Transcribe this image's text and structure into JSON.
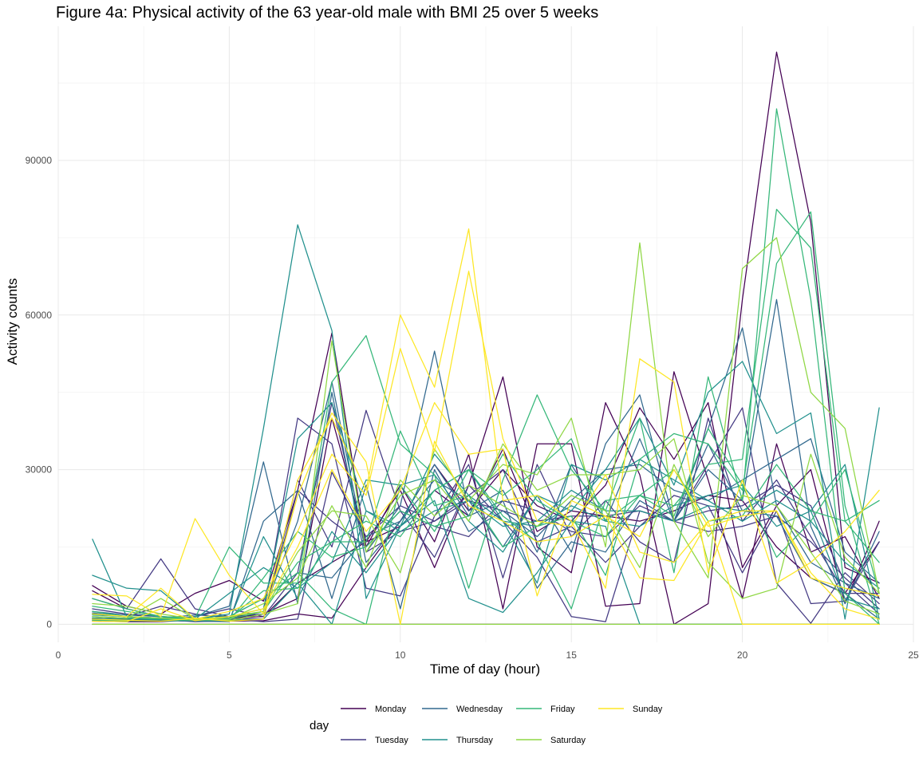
{
  "chart_data": {
    "type": "line",
    "title": "Figure 4a: Physical activity of the 63 year-old male with BMI 25 over 5 weeks",
    "xlabel": "Time of day (hour)",
    "ylabel": "Activity counts",
    "xlim": [
      0,
      25
    ],
    "ylim": [
      -3500,
      116000
    ],
    "xticks": [
      0,
      5,
      10,
      15,
      20,
      25
    ],
    "yticks": [
      0,
      30000,
      60000,
      90000
    ],
    "ytick_labels": [
      "0",
      "30000",
      "60000",
      "90000"
    ],
    "grid": true,
    "legend": {
      "title": "day",
      "position": "bottom",
      "entries": [
        {
          "name": "Monday",
          "color": "#440154"
        },
        {
          "name": "Tuesday",
          "color": "#443a83"
        },
        {
          "name": "Wednesday",
          "color": "#31688e"
        },
        {
          "name": "Thursday",
          "color": "#21908d"
        },
        {
          "name": "Friday",
          "color": "#35b779"
        },
        {
          "name": "Saturday",
          "color": "#8fd744"
        },
        {
          "name": "Sunday",
          "color": "#fde725"
        }
      ]
    },
    "x": [
      1,
      2,
      3,
      4,
      5,
      6,
      7,
      8,
      9,
      10,
      11,
      12,
      13,
      14,
      15,
      16,
      17,
      18,
      19,
      20,
      21,
      22,
      23,
      24
    ],
    "series": [
      {
        "name": "Monday",
        "values": [
          7500,
          3500,
          2000,
          6000,
          8500,
          4500,
          26000,
          56500,
          15000,
          27000,
          16000,
          33000,
          3000,
          35000,
          35000,
          3500,
          4000,
          49000,
          28000,
          5000,
          35000,
          14000,
          17000,
          5000
        ]
      },
      {
        "name": "Monday",
        "values": [
          6500,
          3000,
          1500,
          1000,
          1200,
          2000,
          5000,
          40000,
          16000,
          26000,
          11000,
          27000,
          48000,
          15000,
          10000,
          43000,
          29000,
          0,
          4000,
          63000,
          111000,
          78000,
          11000,
          8000
        ]
      },
      {
        "name": "Monday",
        "values": [
          1200,
          1000,
          800,
          600,
          600,
          700,
          2000,
          1200,
          11000,
          20000,
          31000,
          22000,
          30000,
          23000,
          20000,
          27000,
          42000,
          32000,
          43000,
          11000,
          23000,
          30000,
          4000,
          20000
        ]
      },
      {
        "name": "Monday",
        "values": [
          0,
          0,
          0,
          0,
          0,
          0,
          0,
          0,
          0,
          0,
          0,
          0,
          0,
          0,
          0,
          0,
          0,
          0,
          0,
          0,
          0,
          0,
          0,
          0
        ]
      },
      {
        "name": "Monday",
        "values": [
          600,
          500,
          500,
          900,
          1200,
          1500,
          8000,
          12000,
          16000,
          19000,
          26000,
          21000,
          34000,
          18000,
          22000,
          21000,
          20000,
          22000,
          25000,
          24000,
          15000,
          9000,
          6000,
          16000
        ]
      },
      {
        "name": "Tuesday",
        "values": [
          5000,
          3000,
          12700,
          3000,
          1500,
          2000,
          40000,
          35000,
          7000,
          5500,
          21000,
          31000,
          9000,
          31000,
          17000,
          24000,
          16000,
          12000,
          40000,
          20000,
          28000,
          17000,
          6000,
          6000
        ]
      },
      {
        "name": "Tuesday",
        "values": [
          2000,
          1500,
          3500,
          2000,
          1200,
          1000,
          28000,
          15000,
          41500,
          22000,
          13000,
          27000,
          20000,
          13000,
          1500,
          500,
          22000,
          20000,
          31000,
          42000,
          8000,
          200,
          10000,
          4000
        ]
      },
      {
        "name": "Tuesday",
        "values": [
          1000,
          800,
          700,
          1500,
          3000,
          1500,
          10000,
          43000,
          14000,
          18000,
          20000,
          25000,
          30000,
          16000,
          19000,
          12000,
          19000,
          25000,
          23000,
          10000,
          22000,
          4000,
          4500,
          16000
        ]
      },
      {
        "name": "Tuesday",
        "values": [
          3000,
          2000,
          1500,
          1200,
          1000,
          500,
          1000,
          29500,
          17000,
          23000,
          20000,
          24000,
          22000,
          20000,
          21000,
          21000,
          22000,
          20000,
          18000,
          19000,
          21000,
          16000,
          9000,
          3000
        ]
      },
      {
        "name": "Tuesday",
        "values": [
          800,
          600,
          900,
          500,
          700,
          1000,
          26000,
          20000,
          15000,
          22000,
          19000,
          17000,
          24000,
          22000,
          18000,
          17000,
          23000,
          20000,
          22000,
          23000,
          27000,
          23000,
          8000,
          2000
        ]
      },
      {
        "name": "Wednesday",
        "values": [
          2500,
          1800,
          1500,
          1200,
          1000,
          2500,
          20000,
          47000,
          14000,
          23000,
          53000,
          22000,
          26000,
          14000,
          31000,
          20000,
          36000,
          20000,
          38000,
          57500,
          23000,
          12000,
          8000,
          5000
        ]
      },
      {
        "name": "Wednesday",
        "values": [
          1500,
          1200,
          1000,
          1500,
          3500,
          31500,
          4000,
          45000,
          12000,
          20000,
          28000,
          24000,
          15000,
          25000,
          14000,
          35000,
          44500,
          20000,
          30000,
          24000,
          63000,
          19000,
          4000,
          18000
        ]
      },
      {
        "name": "Wednesday",
        "values": [
          1000,
          800,
          700,
          600,
          500,
          20000,
          26000,
          5000,
          27000,
          3000,
          30000,
          18000,
          22000,
          17000,
          24000,
          30000,
          31000,
          26000,
          24000,
          28000,
          32000,
          36000,
          14000,
          8000
        ]
      },
      {
        "name": "Wednesday",
        "values": [
          2200,
          1500,
          1200,
          1800,
          1500,
          5000,
          10000,
          9000,
          17000,
          20000,
          31000,
          21000,
          24000,
          7000,
          16000,
          14000,
          24000,
          20000,
          35000,
          22000,
          21000,
          9000,
          6000,
          1000
        ]
      },
      {
        "name": "Thursday",
        "values": [
          16500,
          1500,
          1200,
          1000,
          2000,
          38000,
          77500,
          57000,
          5000,
          19000,
          24000,
          5000,
          2300,
          10000,
          20000,
          19000,
          0,
          0,
          0,
          0,
          0,
          0,
          0,
          0
        ]
      },
      {
        "name": "Thursday",
        "values": [
          9500,
          7000,
          6500,
          1000,
          6000,
          11000,
          7000,
          12000,
          28000,
          27000,
          29000,
          20000,
          14000,
          25000,
          22000,
          30000,
          40000,
          27000,
          45000,
          51000,
          37000,
          41000,
          1000,
          42000
        ]
      },
      {
        "name": "Thursday",
        "values": [
          1800,
          1500,
          1200,
          1000,
          1500,
          3000,
          36000,
          43000,
          22000,
          19000,
          26000,
          30000,
          20000,
          19000,
          23000,
          20000,
          19000,
          23000,
          25000,
          27000,
          19000,
          22000,
          31000,
          1000
        ]
      },
      {
        "name": "Thursday",
        "values": [
          1200,
          1000,
          900,
          700,
          800,
          1000,
          8000,
          0,
          22000,
          18000,
          22000,
          24000,
          19000,
          20000,
          26000,
          22000,
          22000,
          20000,
          23000,
          22000,
          26000,
          22000,
          5000,
          3000
        ]
      },
      {
        "name": "Thursday",
        "values": [
          2000,
          1500,
          1000,
          800,
          700,
          17000,
          5000,
          18000,
          10000,
          19000,
          33000,
          25000,
          20000,
          8000,
          31000,
          28000,
          32000,
          28000,
          24000,
          20000,
          24000,
          20000,
          12000,
          7000
        ]
      },
      {
        "name": "Friday",
        "values": [
          3500,
          2500,
          1500,
          1200,
          15000,
          8000,
          8000,
          47000,
          56000,
          35000,
          29000,
          7000,
          28000,
          44500,
          30000,
          22000,
          40000,
          10000,
          48000,
          24000,
          100000,
          63000,
          6000,
          0
        ]
      },
      {
        "name": "Friday",
        "values": [
          2500,
          1500,
          1200,
          1000,
          1500,
          5000,
          10000,
          3000,
          0,
          27000,
          18000,
          30000,
          21000,
          16000,
          3000,
          24000,
          25000,
          23000,
          31000,
          32000,
          80500,
          73000,
          20000,
          12000
        ]
      },
      {
        "name": "Friday",
        "values": [
          1500,
          1200,
          1000,
          800,
          1000,
          2500,
          12000,
          16000,
          16000,
          37500,
          23000,
          25000,
          15000,
          19000,
          21000,
          9500,
          32000,
          37000,
          35000,
          26000,
          70000,
          80000,
          23000,
          0
        ]
      },
      {
        "name": "Friday",
        "values": [
          800,
          700,
          600,
          900,
          700,
          9000,
          18000,
          13000,
          15000,
          22000,
          19000,
          21000,
          33000,
          24000,
          20000,
          17000,
          25000,
          21000,
          38000,
          27000,
          13000,
          20000,
          30000,
          6000
        ]
      },
      {
        "name": "Friday",
        "values": [
          5000,
          3000,
          1500,
          1000,
          1200,
          6500,
          7000,
          16000,
          20000,
          17000,
          26000,
          30000,
          25000,
          30000,
          36000,
          20000,
          25000,
          30000,
          20000,
          21000,
          31000,
          22000,
          20000,
          24000
        ]
      },
      {
        "name": "Saturday",
        "values": [
          0,
          0,
          0,
          0,
          0,
          0,
          0,
          0,
          0,
          0,
          0,
          0,
          0,
          0,
          0,
          0,
          0,
          0,
          0,
          0,
          0,
          0,
          0,
          0
        ]
      },
      {
        "name": "Saturday",
        "values": [
          4000,
          3500,
          2000,
          1000,
          1500,
          2500,
          14000,
          22000,
          21000,
          10000,
          34000,
          24000,
          31000,
          29000,
          40000,
          15000,
          74000,
          20000,
          9000,
          69000,
          75000,
          45000,
          38000,
          6000
        ]
      },
      {
        "name": "Saturday",
        "values": [
          1500,
          1200,
          5000,
          1000,
          700,
          2000,
          4000,
          55000,
          14000,
          25000,
          28000,
          20000,
          35000,
          26000,
          29000,
          29000,
          30000,
          36000,
          12000,
          5000,
          7000,
          33000,
          13000,
          6000
        ]
      },
      {
        "name": "Saturday",
        "values": [
          2000,
          1500,
          1200,
          800,
          1000,
          4000,
          9000,
          23000,
          11000,
          28000,
          21000,
          27000,
          23000,
          19000,
          25000,
          22000,
          11000,
          31000,
          17000,
          25000,
          23000,
          14000,
          4500,
          2000
        ]
      },
      {
        "name": "Sunday",
        "values": [
          5800,
          5500,
          1500,
          20500,
          9500,
          2000,
          28000,
          40000,
          26000,
          60000,
          46000,
          76700,
          24000,
          25000,
          20000,
          7000,
          51500,
          47000,
          10000,
          28000,
          8000,
          12000,
          18000,
          26000
        ]
      },
      {
        "name": "Sunday",
        "values": [
          2000,
          1500,
          7000,
          1000,
          2500,
          5000,
          18000,
          33000,
          25000,
          53500,
          33500,
          68500,
          36000,
          20000,
          19000,
          29000,
          14000,
          12000,
          20000,
          0,
          0,
          0,
          0,
          0
        ]
      },
      {
        "name": "Sunday",
        "values": [
          1000,
          800,
          600,
          1200,
          600,
          1000,
          25000,
          41000,
          31500,
          0,
          35500,
          23000,
          20000,
          16000,
          17000,
          21000,
          17000,
          30000,
          19000,
          21000,
          22000,
          10000,
          3000,
          1000
        ]
      },
      {
        "name": "Sunday",
        "values": [
          600,
          500,
          3000,
          700,
          1500,
          3000,
          15000,
          30000,
          18000,
          26000,
          43000,
          33000,
          34000,
          5500,
          24000,
          21000,
          9000,
          8500,
          20000,
          22000,
          22000,
          9000,
          7000,
          5500
        ]
      }
    ]
  }
}
